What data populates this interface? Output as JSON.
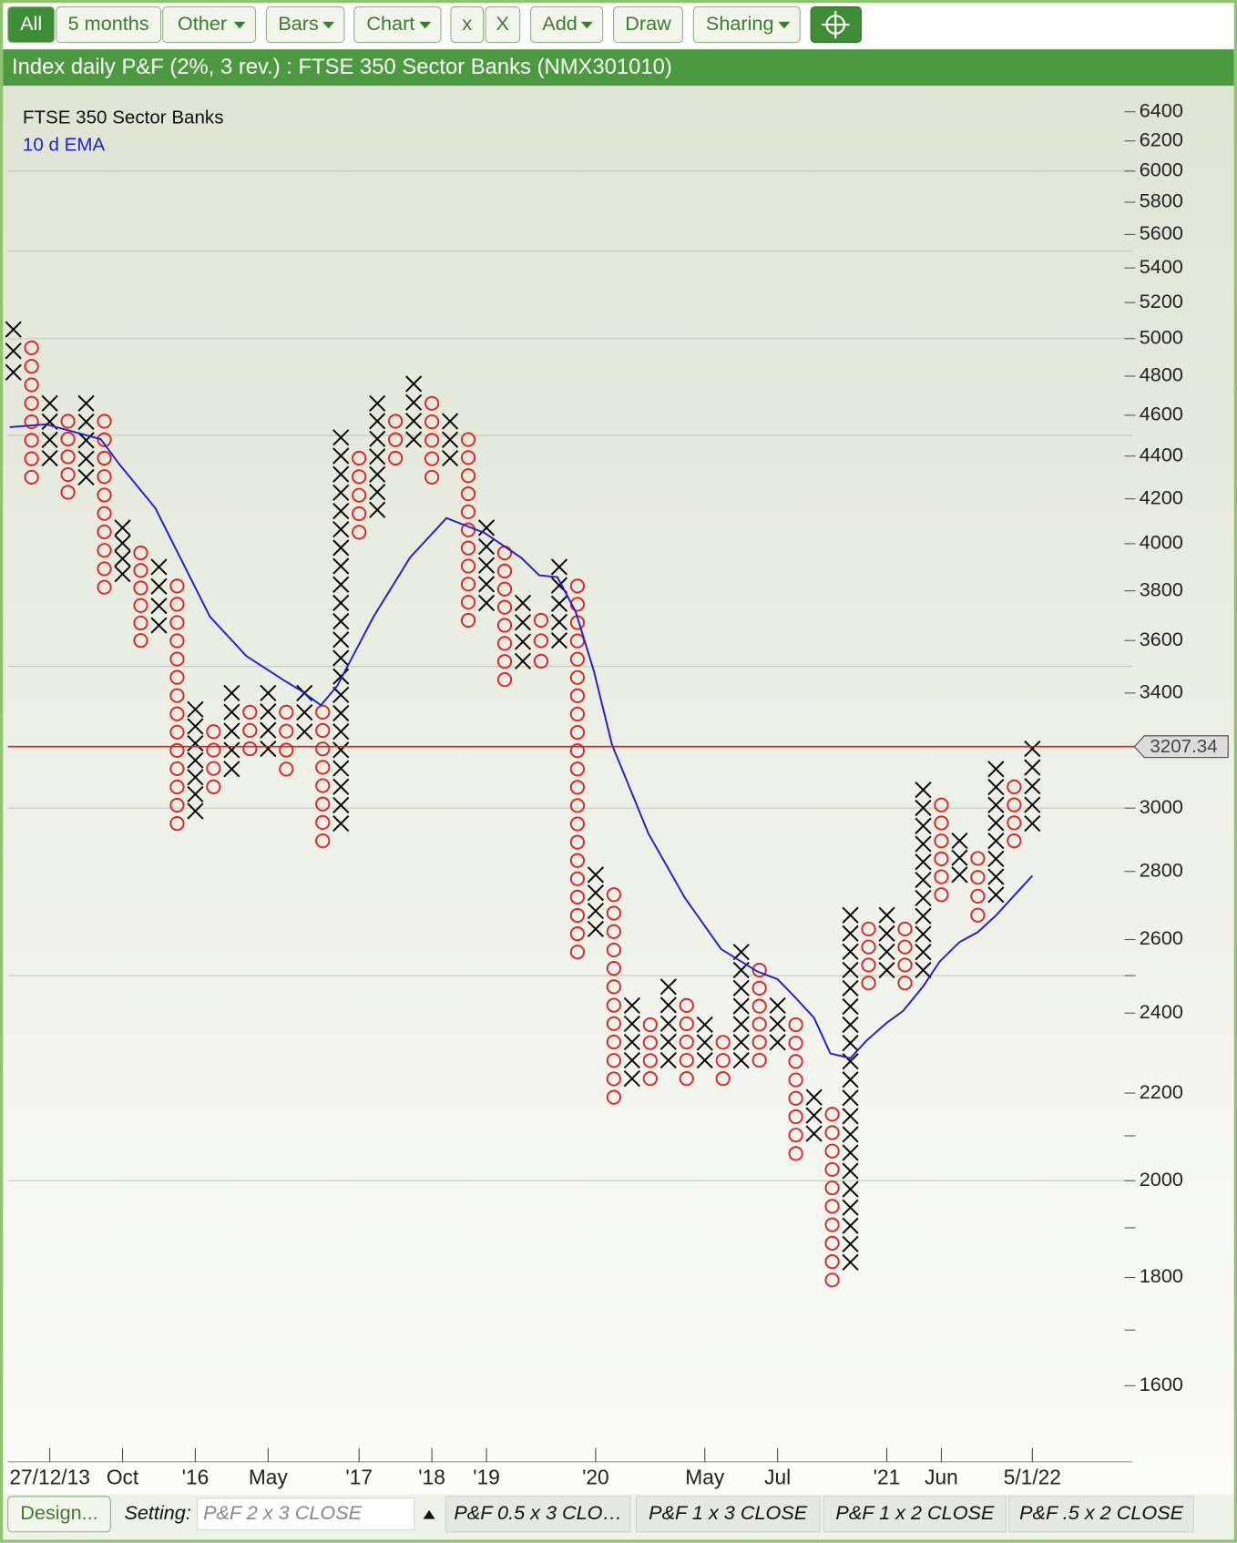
{
  "toolbar": [
    "All",
    "5 months",
    "Other",
    "Bars",
    "Chart",
    "x",
    "X",
    "Add",
    "Draw",
    "Sharing"
  ],
  "title": "Index daily P&F (2%, 3 rev.) : FTSE 350 Sector Banks (NMX301010)",
  "chart_data": {
    "type": "pnf",
    "name": "FTSE 350 Sector Banks",
    "log_scale": true,
    "x_color": "#000000",
    "o_color": "#e02424",
    "columns": [
      {
        "kind": "X",
        "low": 4820,
        "high": 5050
      },
      {
        "kind": "O",
        "low": 4300,
        "high": 4950
      },
      {
        "kind": "X",
        "low": 4390,
        "high": 4660
      },
      {
        "kind": "O",
        "low": 4230,
        "high": 4570
      },
      {
        "kind": "X",
        "low": 4300,
        "high": 4660
      },
      {
        "kind": "O",
        "low": 3815,
        "high": 4570
      },
      {
        "kind": "X",
        "low": 3870,
        "high": 4070
      },
      {
        "kind": "O",
        "low": 3600,
        "high": 3960
      },
      {
        "kind": "X",
        "low": 3660,
        "high": 3900
      },
      {
        "kind": "O",
        "low": 2950,
        "high": 3820
      },
      {
        "kind": "X",
        "low": 2990,
        "high": 3340
      },
      {
        "kind": "O",
        "low": 3070,
        "high": 3260
      },
      {
        "kind": "X",
        "low": 3130,
        "high": 3400
      },
      {
        "kind": "O",
        "low": 3200,
        "high": 3330
      },
      {
        "kind": "X",
        "low": 3200,
        "high": 3400
      },
      {
        "kind": "O",
        "low": 3130,
        "high": 3330
      },
      {
        "kind": "X",
        "low": 3260,
        "high": 3400
      },
      {
        "kind": "O",
        "low": 2895,
        "high": 3330
      },
      {
        "kind": "X",
        "low": 2950,
        "high": 4490
      },
      {
        "kind": "O",
        "low": 4050,
        "high": 4390
      },
      {
        "kind": "X",
        "low": 4150,
        "high": 4660
      },
      {
        "kind": "O",
        "low": 4390,
        "high": 4570
      },
      {
        "kind": "X",
        "low": 4480,
        "high": 4760
      },
      {
        "kind": "O",
        "low": 4300,
        "high": 4660
      },
      {
        "kind": "X",
        "low": 4390,
        "high": 4570
      },
      {
        "kind": "O",
        "low": 3680,
        "high": 4480
      },
      {
        "kind": "X",
        "low": 3750,
        "high": 4070
      },
      {
        "kind": "O",
        "low": 3450,
        "high": 3960
      },
      {
        "kind": "X",
        "low": 3520,
        "high": 3750
      },
      {
        "kind": "O",
        "low": 3520,
        "high": 3680
      },
      {
        "kind": "X",
        "low": 3600,
        "high": 3900
      },
      {
        "kind": "O",
        "low": 2565,
        "high": 3820
      },
      {
        "kind": "X",
        "low": 2630,
        "high": 2790
      },
      {
        "kind": "O",
        "low": 2190,
        "high": 2730
      },
      {
        "kind": "X",
        "low": 2235,
        "high": 2420
      },
      {
        "kind": "O",
        "low": 2235,
        "high": 2370
      },
      {
        "kind": "X",
        "low": 2280,
        "high": 2470
      },
      {
        "kind": "O",
        "low": 2235,
        "high": 2420
      },
      {
        "kind": "X",
        "low": 2280,
        "high": 2370
      },
      {
        "kind": "O",
        "low": 2235,
        "high": 2325
      },
      {
        "kind": "X",
        "low": 2280,
        "high": 2565
      },
      {
        "kind": "O",
        "low": 2280,
        "high": 2515
      },
      {
        "kind": "X",
        "low": 2325,
        "high": 2420
      },
      {
        "kind": "O",
        "low": 2060,
        "high": 2370
      },
      {
        "kind": "X",
        "low": 2105,
        "high": 2190
      },
      {
        "kind": "O",
        "low": 1795,
        "high": 2150
      },
      {
        "kind": "X",
        "low": 1830,
        "high": 2670
      },
      {
        "kind": "O",
        "low": 2480,
        "high": 2630
      },
      {
        "kind": "X",
        "low": 2515,
        "high": 2670
      },
      {
        "kind": "O",
        "low": 2480,
        "high": 2630
      },
      {
        "kind": "X",
        "low": 2515,
        "high": 3060
      },
      {
        "kind": "O",
        "low": 2730,
        "high": 3010
      },
      {
        "kind": "X",
        "low": 2790,
        "high": 2895
      },
      {
        "kind": "O",
        "low": 2670,
        "high": 2840
      },
      {
        "kind": "X",
        "low": 2730,
        "high": 3130
      },
      {
        "kind": "O",
        "low": 2895,
        "high": 3070
      },
      {
        "kind": "X",
        "low": 2950,
        "high": 3200
      }
    ],
    "series": [
      {
        "name": "10 d EMA",
        "color": "#1f1fcc",
        "x": [
          -0.2,
          1.8,
          3.8,
          4.8,
          5.8,
          7.8,
          10.8,
          12.8,
          14.9,
          15.8,
          16.9,
          17.8,
          19.8,
          21.8,
          23.8,
          25.9,
          27.9,
          28.9,
          29.9,
          30.9,
          31.9,
          32.9,
          34.9,
          36.9,
          38.9,
          40.9,
          42,
          42.9,
          44,
          44.9,
          46,
          46.9,
          48,
          48.9,
          50,
          50.9,
          52,
          53,
          54,
          56
        ],
        "values": [
          4541,
          4555,
          4506,
          4482,
          4364,
          4158,
          3695,
          3540,
          3446,
          3409,
          3355,
          3427,
          3695,
          3940,
          4113,
          4047,
          3940,
          3865,
          3857,
          3715,
          3483,
          3214,
          2918,
          2721,
          2573,
          2511,
          2490,
          2445,
          2388,
          2297,
          2285,
          2330,
          2375,
          2406,
          2471,
          2538,
          2593,
          2621,
          2669,
          2787
        ]
      }
    ],
    "last_price": 3207.34,
    "last_color": "#d42020",
    "ylim": [
      1500,
      6520
    ],
    "yticks": [
      6400,
      6200,
      6000,
      5800,
      5600,
      5400,
      5200,
      5000,
      4800,
      4600,
      4400,
      4200,
      4000,
      3800,
      3600,
      3400,
      3000,
      2800,
      2600,
      2400,
      2200,
      2000,
      1800,
      1600
    ],
    "minor_yticks": [
      2500,
      2100,
      1900,
      1700
    ],
    "grid_lines": [
      6000,
      5500,
      5000,
      4500,
      3500,
      3000,
      2500,
      2000
    ],
    "xlim": [
      -0.3,
      61.5
    ],
    "xticks": [
      {
        "value": 2,
        "label": "27/12/13"
      },
      {
        "value": 6,
        "label": "Oct"
      },
      {
        "value": 10,
        "label": "'16"
      },
      {
        "value": 14,
        "label": "May"
      },
      {
        "value": 19,
        "label": "'17"
      },
      {
        "value": 23,
        "label": "'18"
      },
      {
        "value": 26,
        "label": "'19"
      },
      {
        "value": 32,
        "label": "'20"
      },
      {
        "value": 38,
        "label": "May"
      },
      {
        "value": 42,
        "label": "Jul"
      },
      {
        "value": 48,
        "label": "'21"
      },
      {
        "value": 51,
        "label": "Jun"
      },
      {
        "value": 56,
        "label": "5/1/22"
      }
    ]
  },
  "footer": {
    "design": "Design...",
    "setting_label": "Setting:",
    "setting_value": "P&F 2 x 3 CLOSE",
    "presets": [
      "P&F 0.5 x 3 CLO…",
      "P&F 1 x 3 CLOSE",
      "P&F 1 x 2 CLOSE",
      "P&F .5 x 2 CLOSE"
    ]
  }
}
